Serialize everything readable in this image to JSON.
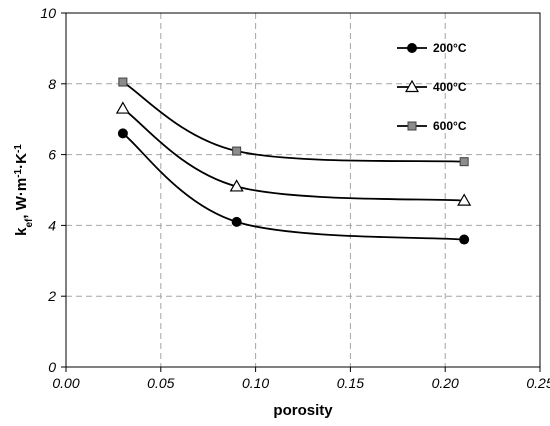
{
  "chart_data": {
    "type": "scatter",
    "xlabel": "porosity",
    "ylabel": {
      "main": "k",
      "sub": "ef",
      "rest": ", W·m",
      "sup1": "-1",
      "mid": "·K",
      "sup2": "-1"
    },
    "xlim": [
      0,
      0.25
    ],
    "ylim": [
      0,
      10
    ],
    "x_ticks": [
      0,
      0.05,
      0.1,
      0.15,
      0.2,
      0.25
    ],
    "x_tick_labels": [
      "0.00",
      "0.05",
      "0.10",
      "0.15",
      "0.20",
      "0.25"
    ],
    "y_ticks": [
      0,
      2,
      4,
      6,
      8,
      10
    ],
    "y_tick_labels": [
      "0",
      "2",
      "4",
      "6",
      "8",
      "10"
    ],
    "grid": true,
    "smoothed_lines": true,
    "legend_position": "top-right",
    "series": [
      {
        "name": "200°C",
        "marker": "filled-circle",
        "color": "#000000",
        "x": [
          0.03,
          0.09,
          0.21
        ],
        "y": [
          6.6,
          4.1,
          3.6
        ]
      },
      {
        "name": "400°C",
        "marker": "open-triangle",
        "color": "#000000",
        "x": [
          0.03,
          0.09,
          0.21
        ],
        "y": [
          7.3,
          5.1,
          4.7
        ]
      },
      {
        "name": "600°C",
        "marker": "gray-square",
        "color": "#808080",
        "x": [
          0.03,
          0.09,
          0.21
        ],
        "y": [
          8.05,
          6.1,
          5.8
        ]
      }
    ]
  }
}
